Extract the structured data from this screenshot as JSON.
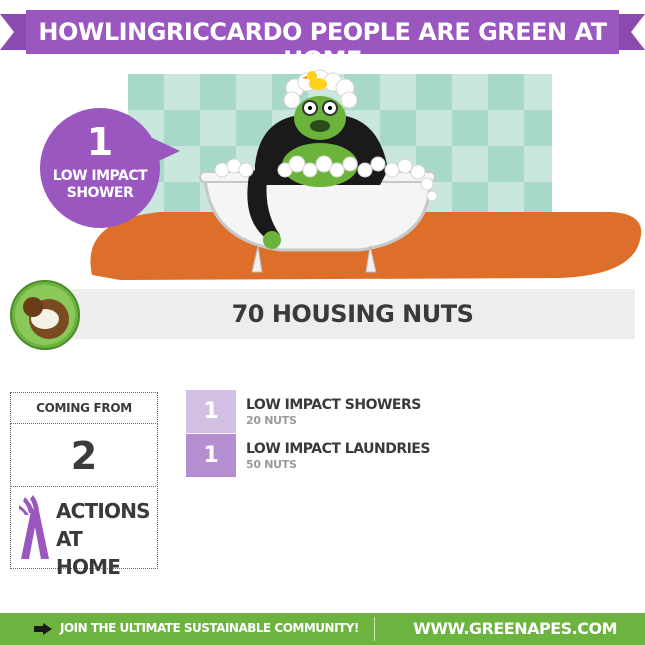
{
  "header": {
    "title": "HOWLINGRICCARDO PEOPLE ARE GREEN AT HOME"
  },
  "badge": {
    "count": "1",
    "label": "LOW IMPACT SHOWER"
  },
  "nuts": {
    "label": "70 HOUSING NUTS"
  },
  "summary": {
    "coming_from_label": "COMING FROM",
    "count": "2",
    "actions_label_line1": "ACTIONS AT",
    "actions_label_line2": "HOME"
  },
  "actions": [
    {
      "count": "1",
      "label": "LOW IMPACT SHOWERS",
      "nuts": "20 NUTS",
      "color": "#d3bfe4"
    },
    {
      "count": "1",
      "label": "LOW IMPACT LAUNDRIES",
      "nuts": "50 NUTS",
      "color": "#b58ed1"
    }
  ],
  "footer": {
    "join_label": "JOIN THE ULTIMATE SUSTAINABLE COMMUNITY!",
    "url": "WWW.GREENAPES.COM"
  },
  "colors": {
    "purple": "#9a57c0",
    "green": "#6db33f",
    "orange": "#de6f2a",
    "tile_a": "#a8d8c8",
    "tile_b": "#c9e7dc"
  }
}
